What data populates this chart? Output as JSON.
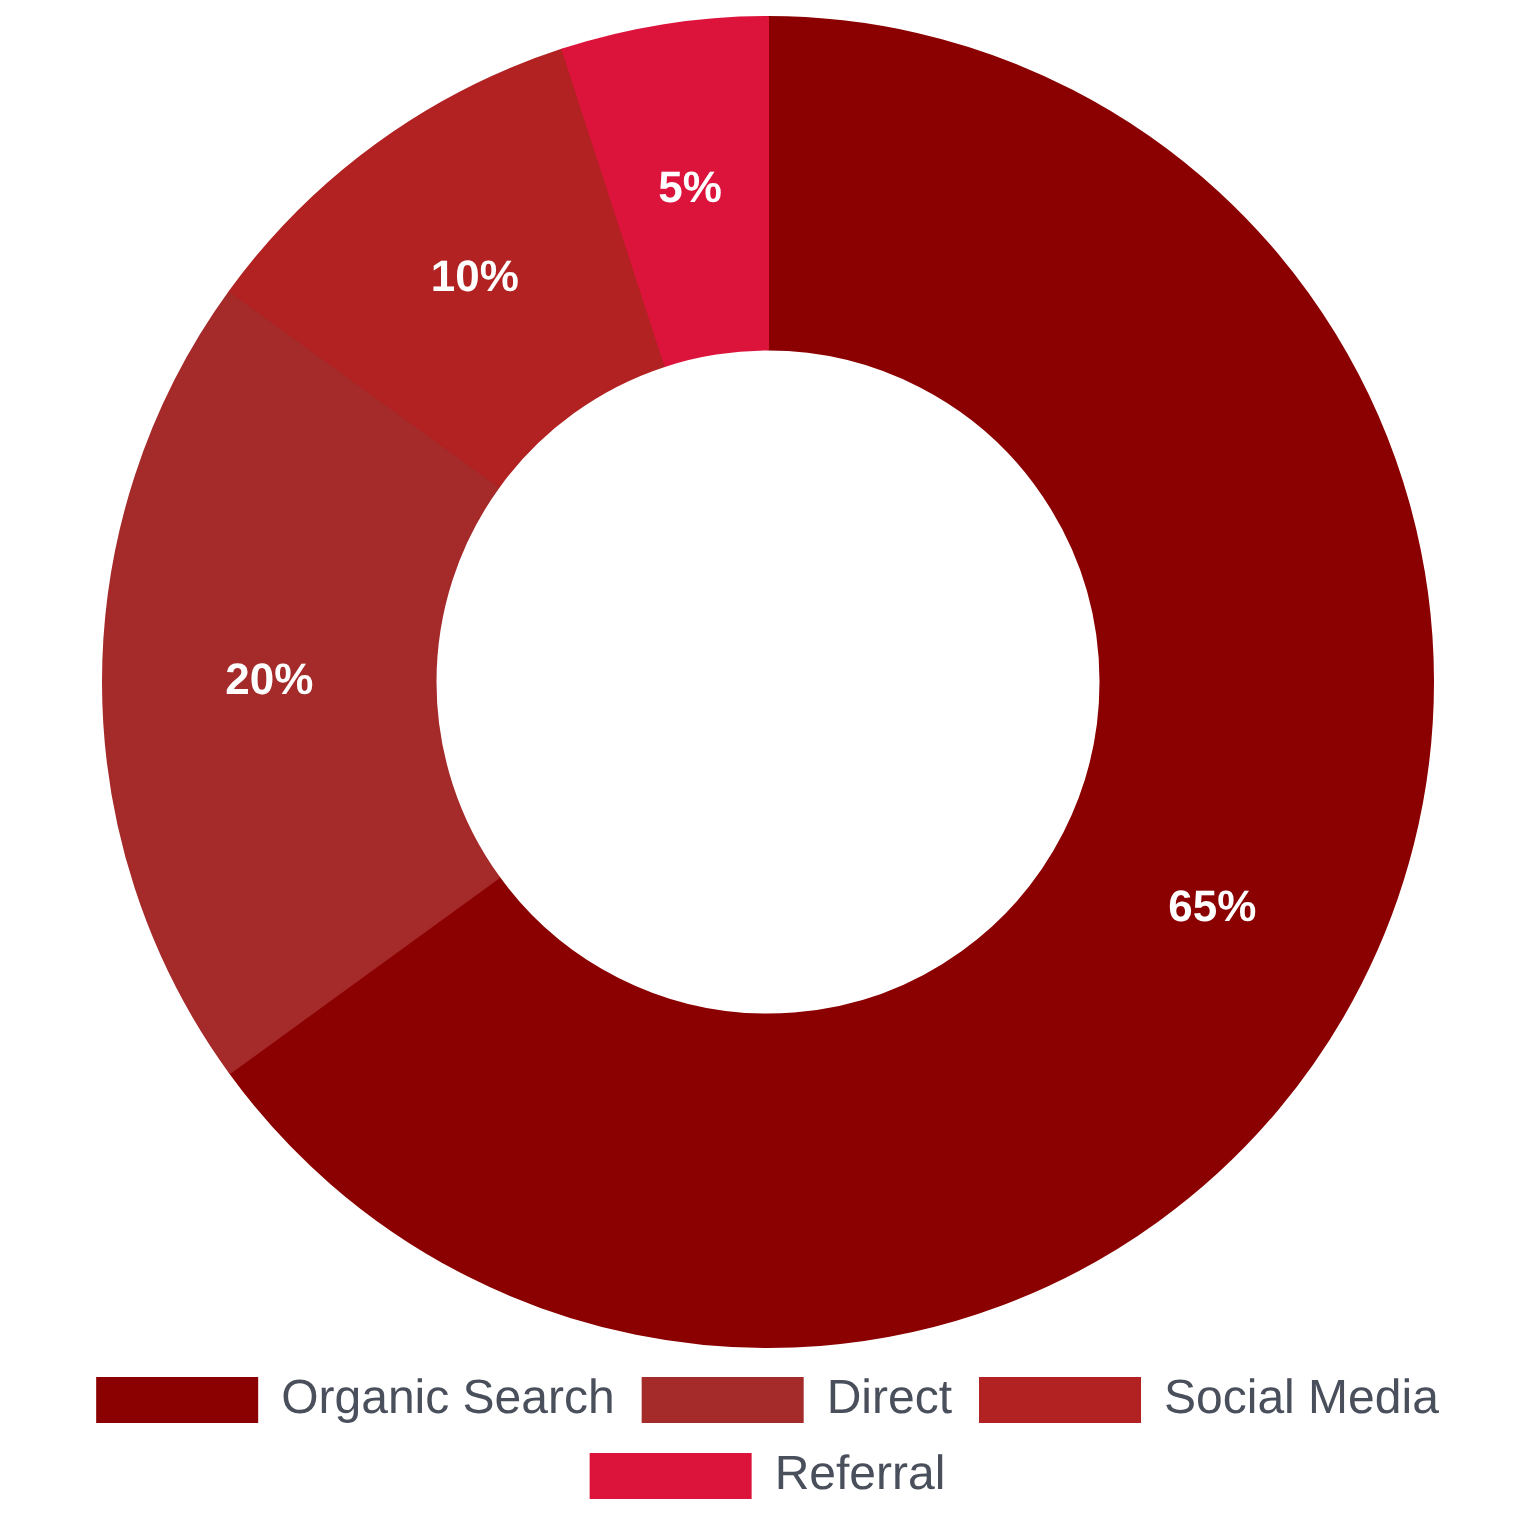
{
  "chart_data": {
    "type": "donut",
    "categories": [
      "Organic Search",
      "Direct",
      "Social Media",
      "Referral"
    ],
    "values": [
      65,
      20,
      10,
      5
    ],
    "colors": [
      "#8b0000",
      "#a52a2a",
      "#b22222",
      "#dc143c"
    ],
    "value_labels": [
      "65%",
      "20%",
      "10%",
      "5%"
    ],
    "legend": "bottom"
  }
}
